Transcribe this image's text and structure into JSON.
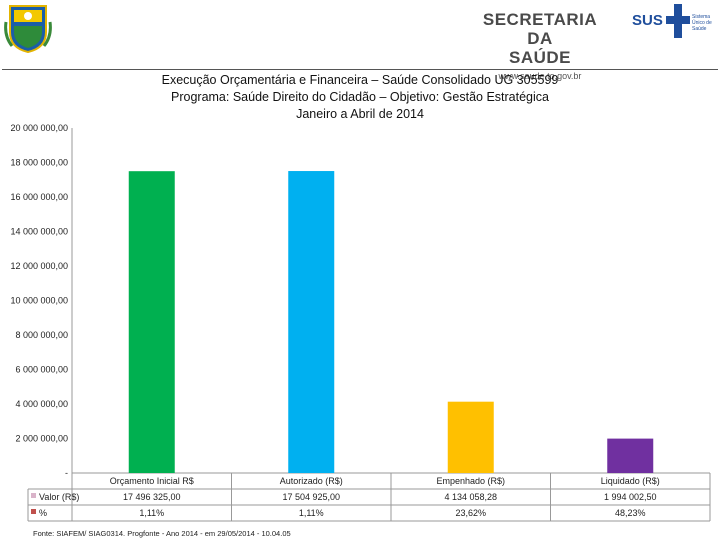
{
  "header": {
    "org_line1": "SECRETARIA DA",
    "org_line2": "SAÚDE",
    "org_url": "www.saude.to.gov.br",
    "sus_label": "SUS",
    "sus_small": "Sistema Único de Saúde"
  },
  "chart_data": {
    "type": "bar",
    "title_lines": [
      "Execução Orçamentária e Financeira –  Saúde Consolidado UG 305599",
      "Programa: Saúde Direito do Cidadão – Objetivo: Gestão Estratégica",
      "Janeiro a Abril de 2014"
    ],
    "categories": [
      "Orçamento Inicial R$",
      "Autorizado (R$)",
      "Empenhado (R$)",
      "Liquidado (R$)"
    ],
    "series": [
      {
        "name": "Valor (R$)",
        "values": [
          17496325.0,
          17504925.0,
          4134058.28,
          1994002.5
        ],
        "value_labels": [
          "17 496 325,00",
          "17 504 925,00",
          "4 134 058,28",
          "1 994 002,50"
        ]
      },
      {
        "name": "%",
        "values": [
          1.11,
          1.11,
          23.62,
          48.23
        ],
        "value_labels": [
          "1,11%",
          "1,11%",
          "23,62%",
          "48,23%"
        ]
      }
    ],
    "bar_colors": [
      "#00b050",
      "#00b0f0",
      "#ffc000",
      "#7030a0"
    ],
    "series_marker_colors": [
      "#d9b3c9",
      "#c0504d"
    ],
    "ylim": [
      0,
      20000000
    ],
    "yticks": [
      0,
      2000000,
      4000000,
      6000000,
      8000000,
      10000000,
      12000000,
      14000000,
      16000000,
      18000000,
      20000000
    ],
    "ytick_labels": [
      "-",
      "2 000 000,00",
      "4 000 000,00",
      "6 000 000,00",
      "8 000 000,00",
      "10 000 000,00",
      "12 000 000,00",
      "14 000 000,00",
      "16 000 000,00",
      "18 000 000,00",
      "20 000 000,00"
    ],
    "grid": false,
    "legend": "data-table"
  },
  "footer": {
    "source": "Fonte: SIAFEM/ SIAG0314. Progfonte - Ano 2014 - em 29/05/2014 - 10.04.05"
  }
}
